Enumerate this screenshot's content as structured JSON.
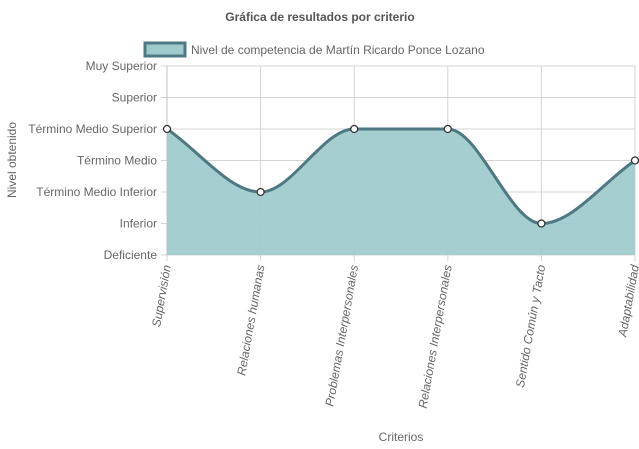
{
  "chart_data": {
    "type": "area",
    "title": "Gráfica de resultados por criterio",
    "xlabel": "Criterios",
    "ylabel": "Nivel obtenido",
    "y_levels": [
      "Deficiente",
      "Inferior",
      "Término Medio Inferior",
      "Término Medio",
      "Término Medio Superior",
      "Superior",
      "Muy Superior"
    ],
    "ylim": [
      0,
      6
    ],
    "categories": [
      "Supervisión",
      "Relaciones humanas",
      "Problemas Interpersonales",
      "Relaciones Interpersonales",
      "Sentido Común y Tacto",
      "Adaptabilidad"
    ],
    "series": [
      {
        "name": "Nivel de competencia de Martín Ricardo Ponce Lozano",
        "values": [
          4,
          2,
          4,
          4,
          1,
          3
        ],
        "value_labels": [
          "Término Medio Superior",
          "Término Medio Inferior",
          "Término Medio Superior",
          "Término Medio Superior",
          "Inferior",
          "Término Medio"
        ]
      }
    ],
    "grid": true,
    "legend_position": "top",
    "colors": {
      "fill": "#9fcbce",
      "line": "#4e7882",
      "point_fill": "#ffffff"
    }
  }
}
